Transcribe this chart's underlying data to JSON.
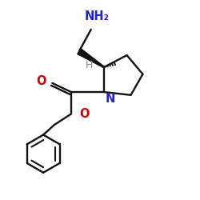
{
  "background": "#ffffff",
  "nh2_label": "NH₂",
  "nh2_color": "#2222cc",
  "h_label": "H",
  "h_color": "#888888",
  "n_label": "N",
  "n_color": "#2222cc",
  "o1_label": "O",
  "o1_color": "#cc0000",
  "o2_label": "O",
  "o2_color": "#cc0000",
  "line_color": "#111111",
  "lw": 1.7
}
